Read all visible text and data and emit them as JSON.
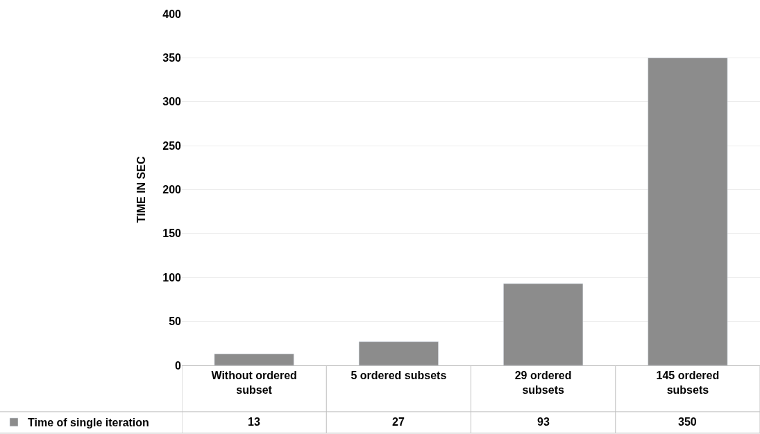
{
  "chart_data": {
    "type": "bar",
    "ylabel": "TIME IN SEC",
    "categories": [
      "Without ordered subset",
      "5 ordered subsets",
      "29 ordered subsets",
      "145 ordered subsets"
    ],
    "series": [
      {
        "name": "Time of single iteration",
        "color": "#8c8c8c",
        "values": [
          13,
          27,
          93,
          350
        ]
      }
    ],
    "ylim": [
      0,
      400
    ],
    "yticks": [
      0,
      50,
      100,
      150,
      200,
      250,
      300,
      350,
      400
    ],
    "grid": "y",
    "legend": "bottom",
    "data_labels": true
  }
}
